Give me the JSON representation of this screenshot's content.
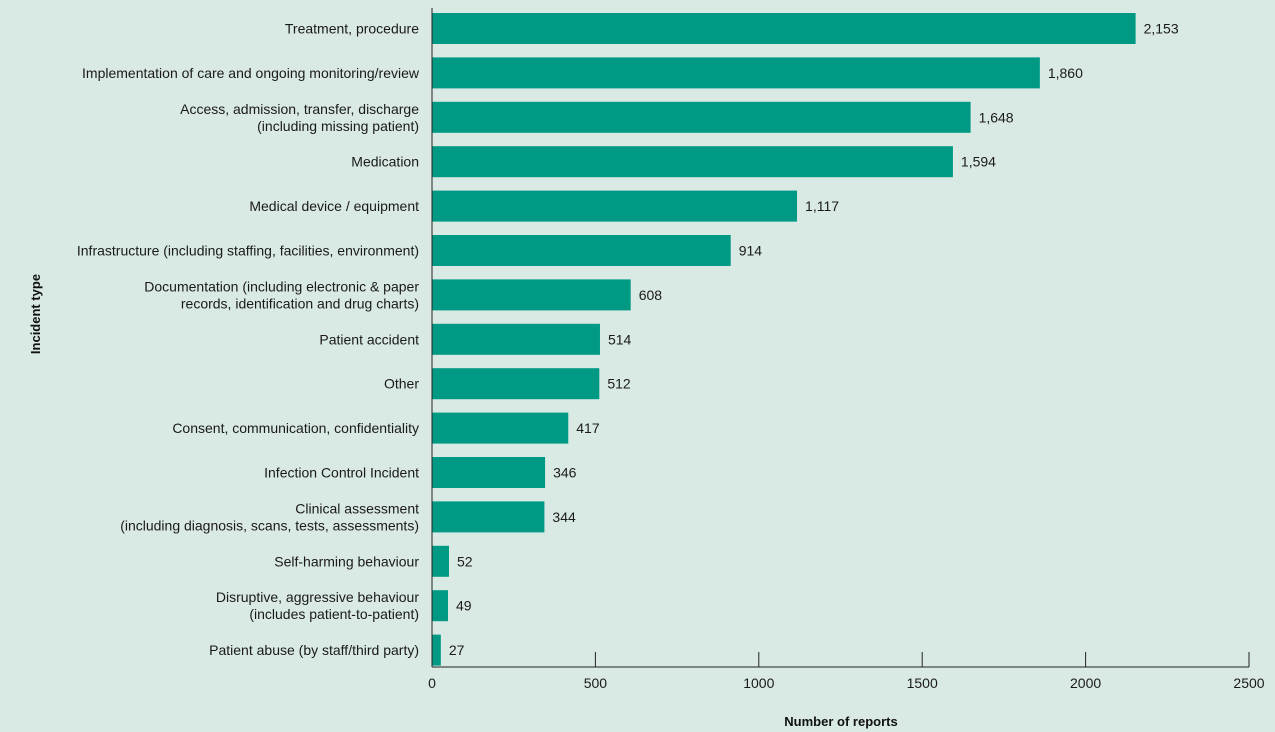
{
  "colors": {
    "background": "#d9e9e4",
    "bar": "#009a84",
    "axis": "#222222"
  },
  "chart_data": {
    "type": "bar",
    "orientation": "horizontal",
    "title": "",
    "xlabel": "Number of reports",
    "ylabel": "Incident type",
    "xlim": [
      0,
      2500
    ],
    "xticks": [
      0,
      500,
      1000,
      1500,
      2000,
      2500
    ],
    "grid": false,
    "legend": "none",
    "categories": [
      [
        "Treatment, procedure"
      ],
      [
        "Implementation of care and ongoing monitoring/review"
      ],
      [
        "Access, admission, transfer, discharge",
        "(including missing patient)"
      ],
      [
        "Medication"
      ],
      [
        "Medical device / equipment"
      ],
      [
        "Infrastructure (including staffing, facilities, environment)"
      ],
      [
        "Documentation (including electronic & paper",
        "records, identification and drug charts)"
      ],
      [
        "Patient accident"
      ],
      [
        "Other"
      ],
      [
        "Consent, communication, confidentiality"
      ],
      [
        "Infection Control Incident"
      ],
      [
        "Clinical assessment",
        "(including diagnosis, scans, tests, assessments)"
      ],
      [
        "Self-harming behaviour"
      ],
      [
        "Disruptive, aggressive behaviour",
        "(includes patient-to-patient)"
      ],
      [
        "Patient abuse (by staff/third party)"
      ]
    ],
    "values": [
      2153,
      1860,
      1648,
      1594,
      1117,
      914,
      608,
      514,
      512,
      417,
      346,
      344,
      52,
      49,
      27
    ],
    "value_labels": [
      "2,153",
      "1,860",
      "1,648",
      "1,594",
      "1,117",
      "914",
      "608",
      "514",
      "512",
      "417",
      "346",
      "344",
      "52",
      "49",
      "27"
    ]
  }
}
